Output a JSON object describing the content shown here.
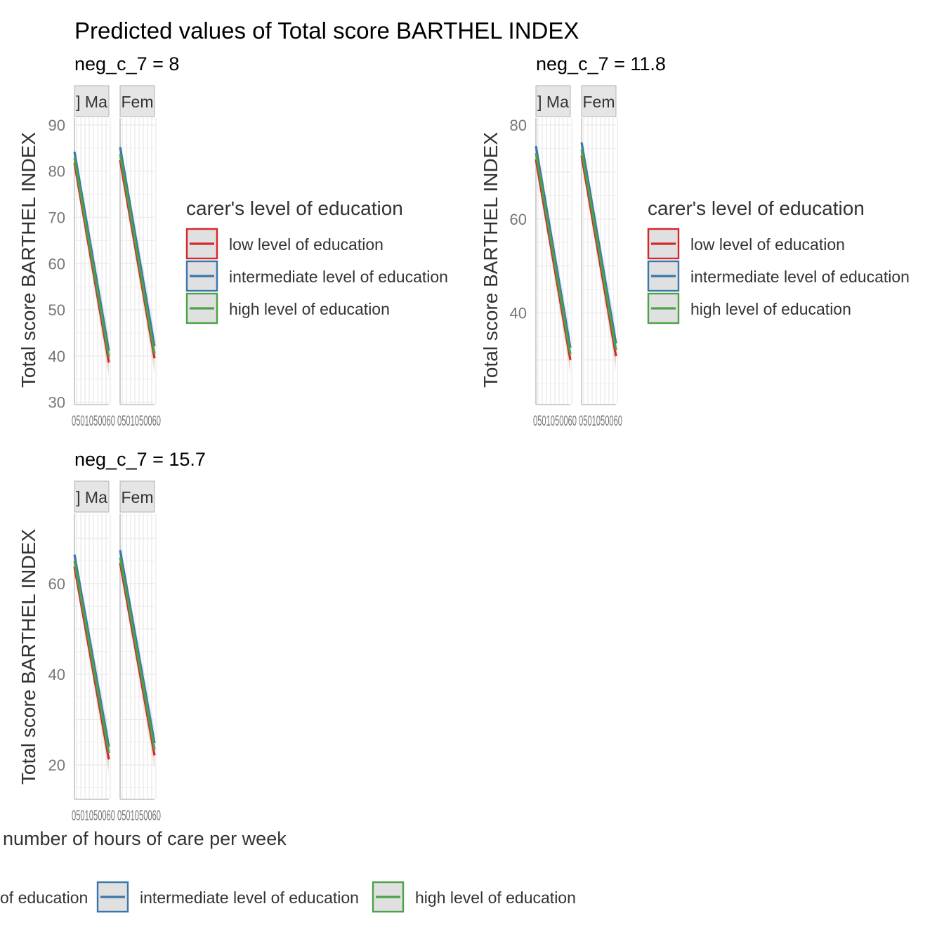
{
  "title": "Predicted values of Total score BARTHEL INDEX",
  "legend_title": "carer's level of education",
  "legend_entries": [
    {
      "label": "low level of education",
      "color": "#d7262b"
    },
    {
      "label": "intermediate level of education",
      "color": "#3b76ad"
    },
    {
      "label": "high level of education",
      "color": "#4ba247"
    }
  ],
  "bottom_legend": {
    "cut_label": "of education",
    "labels": [
      "intermediate level of education",
      "high level of education"
    ]
  },
  "chart_data": [
    {
      "type": "line",
      "panel_title": "neg_c_7 = 8",
      "xlabel": "",
      "ylabel": "Total score BARTHEL INDEX",
      "ylim": [
        29.5,
        91.5
      ],
      "yticks": [
        30,
        40,
        50,
        60,
        70,
        80,
        90
      ],
      "xlim": [
        0,
        168
      ],
      "xtick_text": "0501050060",
      "facets": [
        {
          "strip": "] Ma",
          "series": [
            {
              "name": "low level of education",
              "x": [
                0,
                168
              ],
              "y": [
                81.8,
                38.6
              ]
            },
            {
              "name": "intermediate level of education",
              "x": [
                0,
                168
              ],
              "y": [
                84.2,
                41.1
              ]
            },
            {
              "name": "high level of education",
              "x": [
                0,
                168
              ],
              "y": [
                82.8,
                39.8
              ]
            }
          ]
        },
        {
          "strip": "Fem",
          "series": [
            {
              "name": "low level of education",
              "x": [
                0,
                168
              ],
              "y": [
                82.4,
                39.5
              ]
            },
            {
              "name": "intermediate level of education",
              "x": [
                0,
                168
              ],
              "y": [
                85.2,
                42.1
              ]
            },
            {
              "name": "high level of education",
              "x": [
                0,
                168
              ],
              "y": [
                83.7,
                40.5
              ]
            }
          ]
        }
      ]
    },
    {
      "type": "line",
      "panel_title": "neg_c_7 = 11.8",
      "xlabel": "",
      "ylabel": "Total score BARTHEL INDEX",
      "ylim": [
        20.5,
        81.5
      ],
      "yticks": [
        40,
        60,
        80
      ],
      "xlim": [
        0,
        168
      ],
      "xtick_text": "0501050060",
      "facets": [
        {
          "strip": "] Ma",
          "series": [
            {
              "name": "low level of education",
              "x": [
                0,
                168
              ],
              "y": [
                72.7,
                30.0
              ]
            },
            {
              "name": "intermediate level of education",
              "x": [
                0,
                168
              ],
              "y": [
                75.5,
                32.6
              ]
            },
            {
              "name": "high level of education",
              "x": [
                0,
                168
              ],
              "y": [
                74.0,
                31.2
              ]
            }
          ]
        },
        {
          "strip": "Fem",
          "series": [
            {
              "name": "low level of education",
              "x": [
                0,
                168
              ],
              "y": [
                73.5,
                30.8
              ]
            },
            {
              "name": "intermediate level of education",
              "x": [
                0,
                168
              ],
              "y": [
                76.3,
                33.5
              ]
            },
            {
              "name": "high level of education",
              "x": [
                0,
                168
              ],
              "y": [
                74.8,
                32.1
              ]
            }
          ]
        }
      ]
    },
    {
      "type": "line",
      "panel_title": "neg_c_7 = 15.7",
      "xlabel": "number of hours of care per week",
      "ylabel": "Total score BARTHEL INDEX",
      "ylim": [
        12.4,
        75.5
      ],
      "yticks": [
        20,
        40,
        60
      ],
      "xlim": [
        0,
        168
      ],
      "xtick_text": "0501050060",
      "facets": [
        {
          "strip": "] Ma",
          "series": [
            {
              "name": "low level of education",
              "x": [
                0,
                168
              ],
              "y": [
                63.8,
                21.2
              ]
            },
            {
              "name": "intermediate level of education",
              "x": [
                0,
                168
              ],
              "y": [
                66.4,
                24.0
              ]
            },
            {
              "name": "high level of education",
              "x": [
                0,
                168
              ],
              "y": [
                65.0,
                22.6
              ]
            }
          ]
        },
        {
          "strip": "Fem",
          "series": [
            {
              "name": "low level of education",
              "x": [
                0,
                168
              ],
              "y": [
                64.6,
                22.1
              ]
            },
            {
              "name": "intermediate level of education",
              "x": [
                0,
                168
              ],
              "y": [
                67.4,
                24.8
              ]
            },
            {
              "name": "high level of education",
              "x": [
                0,
                168
              ],
              "y": [
                65.8,
                23.4
              ]
            }
          ]
        }
      ]
    }
  ]
}
